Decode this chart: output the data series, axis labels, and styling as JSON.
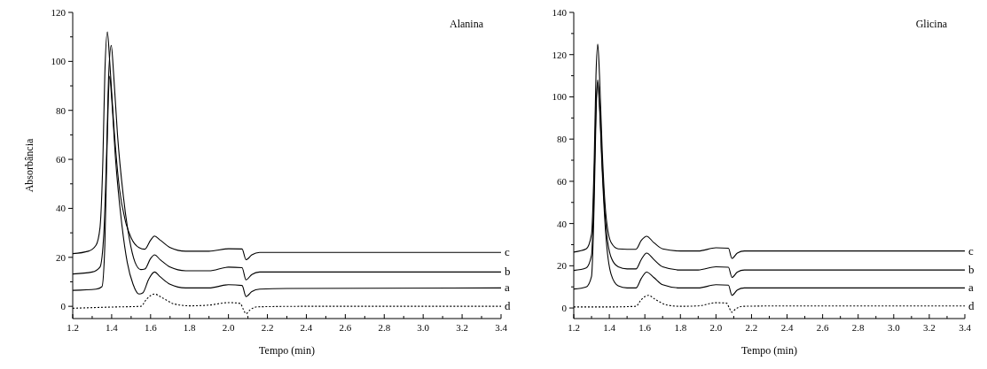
{
  "chart_data": [
    {
      "type": "line",
      "title": "Alanina",
      "xlabel": "Tempo (min)",
      "ylabel": "Absorbância",
      "xlim": [
        1.2,
        3.4
      ],
      "ylim": [
        -5,
        120
      ],
      "xticks": [
        1.2,
        {
          "value": 1.3,
          "label": null
        },
        1.4,
        {
          "value": 1.5,
          "label": null
        },
        1.6,
        {
          "value": 1.7,
          "label": null
        },
        1.8,
        {
          "value": 1.9,
          "label": null
        },
        {
          "value": 2,
          "label": "2.0"
        },
        {
          "value": 2.1,
          "label": null
        },
        2.2,
        {
          "value": 2.3,
          "label": null
        },
        2.4,
        {
          "value": 2.5,
          "label": null
        },
        2.6,
        {
          "value": 2.7,
          "label": null
        },
        2.8,
        {
          "value": 2.9,
          "label": null
        },
        {
          "value": 3,
          "label": "3.0"
        },
        {
          "value": 3.1,
          "label": null
        },
        3.2,
        {
          "value": 3.3,
          "label": null
        },
        3.4
      ],
      "yticks": [
        0,
        {
          "value": 10,
          "label": null
        },
        20,
        {
          "value": 30,
          "label": null
        },
        40,
        {
          "value": 50,
          "label": null
        },
        60,
        {
          "value": 70,
          "label": null
        },
        80,
        {
          "value": 90,
          "label": null
        },
        100,
        {
          "value": 110,
          "label": null
        },
        120
      ],
      "grid": false,
      "series": [
        {
          "name": "c",
          "color": "#000000",
          "line_style": "solid",
          "x": [
            1.2,
            1.28,
            1.32,
            1.34,
            1.355,
            1.365,
            1.378,
            1.39,
            1.41,
            1.44,
            1.47,
            1.5,
            1.54,
            1.57,
            1.6,
            1.62,
            1.65,
            1.7,
            1.78,
            1.9,
            2.0,
            2.07,
            2.09,
            2.12,
            2.16,
            2.3,
            3.4
          ],
          "values": [
            21.5,
            22.5,
            25,
            32,
            60,
            95,
            112,
            100,
            75,
            48,
            35,
            28,
            24,
            23.3,
            27,
            28.7,
            27,
            24,
            22.5,
            22.5,
            23.5,
            23.4,
            19,
            21,
            22,
            22,
            22
          ]
        },
        {
          "name": "b",
          "color": "#000000",
          "line_style": "solid",
          "x": [
            1.2,
            1.3,
            1.34,
            1.36,
            1.375,
            1.385,
            1.398,
            1.41,
            1.43,
            1.46,
            1.49,
            1.52,
            1.55,
            1.57,
            1.6,
            1.62,
            1.65,
            1.7,
            1.78,
            1.9,
            2.0,
            2.07,
            2.09,
            2.12,
            2.16,
            2.3,
            3.4
          ],
          "values": [
            13.2,
            14,
            16,
            30,
            65,
            95,
            106.5,
            95,
            70,
            45,
            28,
            18,
            15,
            15.2,
            19.5,
            21,
            19,
            16,
            14.5,
            14.5,
            16,
            15.8,
            10.8,
            13,
            14,
            14,
            14
          ]
        },
        {
          "name": "a",
          "color": "#000000",
          "line_style": "solid",
          "x": [
            1.2,
            1.32,
            1.35,
            1.365,
            1.375,
            1.383,
            1.39,
            1.4,
            1.42,
            1.45,
            1.48,
            1.51,
            1.54,
            1.56,
            1.59,
            1.62,
            1.65,
            1.7,
            1.78,
            1.9,
            2.0,
            2.07,
            2.09,
            2.12,
            2.16,
            2.3,
            3.4
          ],
          "values": [
            6.5,
            7,
            8,
            25,
            60,
            85,
            94,
            85,
            60,
            35,
            18,
            9,
            5,
            5.5,
            11,
            14,
            12,
            9,
            7.5,
            7.5,
            8.8,
            8.5,
            4,
            6,
            7,
            7.3,
            7.5
          ]
        },
        {
          "name": "d",
          "color": "#000000",
          "line_style": "dotted",
          "x": [
            1.2,
            1.4,
            1.55,
            1.58,
            1.62,
            1.66,
            1.72,
            1.8,
            1.9,
            2.0,
            2.06,
            2.075,
            2.09,
            2.11,
            2.15,
            2.4,
            3.4
          ],
          "values": [
            -0.8,
            -0.3,
            0,
            3,
            5,
            3.5,
            1,
            0.2,
            0.5,
            1.5,
            1.2,
            -1,
            -3,
            -1.5,
            -0.2,
            0,
            0
          ]
        }
      ]
    },
    {
      "type": "line",
      "title": "Glicina",
      "xlabel": "Tempo (min)",
      "xlim": [
        1.2,
        3.4
      ],
      "ylim": [
        -5,
        140
      ],
      "xticks": [
        1.2,
        {
          "value": 1.3,
          "label": null
        },
        1.4,
        {
          "value": 1.5,
          "label": null
        },
        1.6,
        {
          "value": 1.7,
          "label": null
        },
        1.8,
        {
          "value": 1.9,
          "label": null
        },
        {
          "value": 2,
          "label": "2.0"
        },
        {
          "value": 2.1,
          "label": null
        },
        2.2,
        {
          "value": 2.3,
          "label": null
        },
        2.4,
        {
          "value": 2.5,
          "label": null
        },
        2.6,
        {
          "value": 2.7,
          "label": null
        },
        2.8,
        {
          "value": 2.9,
          "label": null
        },
        {
          "value": 3,
          "label": "3.0"
        },
        {
          "value": 3.1,
          "label": null
        },
        3.2,
        {
          "value": 3.3,
          "label": null
        },
        3.4
      ],
      "yticks": [
        0,
        {
          "value": 10,
          "label": null
        },
        20,
        {
          "value": 30,
          "label": null
        },
        40,
        {
          "value": 50,
          "label": null
        },
        60,
        {
          "value": 70,
          "label": null
        },
        80,
        {
          "value": 90,
          "label": null
        },
        100,
        {
          "value": 110,
          "label": null
        },
        120,
        {
          "value": 130,
          "label": null
        },
        140
      ],
      "grid": false,
      "series": [
        {
          "name": "c",
          "color": "#000000",
          "line_style": "solid",
          "x": [
            1.2,
            1.27,
            1.3,
            1.315,
            1.325,
            1.335,
            1.345,
            1.36,
            1.38,
            1.41,
            1.45,
            1.5,
            1.55,
            1.58,
            1.61,
            1.65,
            1.7,
            1.8,
            1.9,
            2.0,
            2.07,
            2.09,
            2.12,
            2.16,
            2.3,
            3.4
          ],
          "values": [
            26.5,
            28,
            35,
            70,
            110,
            125,
            110,
            75,
            45,
            31,
            28,
            27.8,
            27.8,
            32,
            34,
            31,
            28,
            27,
            27,
            28.5,
            28.3,
            23.5,
            26,
            27,
            27,
            27
          ]
        },
        {
          "name": "b",
          "color": "#000000",
          "line_style": "solid",
          "x": [
            1.2,
            1.27,
            1.3,
            1.315,
            1.325,
            1.335,
            1.345,
            1.36,
            1.38,
            1.41,
            1.45,
            1.5,
            1.55,
            1.58,
            1.61,
            1.65,
            1.7,
            1.8,
            1.9,
            2.0,
            2.07,
            2.09,
            2.12,
            2.16,
            2.3,
            3.4
          ],
          "values": [
            17.8,
            19,
            25,
            60,
            95,
            108,
            97,
            68,
            40,
            24,
            19.5,
            18.5,
            18.5,
            23,
            26,
            23,
            19.5,
            18,
            18,
            19.5,
            19.3,
            14.5,
            17,
            18,
            18,
            18
          ]
        },
        {
          "name": "a",
          "color": "#000000",
          "line_style": "solid",
          "x": [
            1.2,
            1.27,
            1.3,
            1.315,
            1.325,
            1.335,
            1.345,
            1.36,
            1.38,
            1.41,
            1.45,
            1.5,
            1.55,
            1.58,
            1.61,
            1.65,
            1.7,
            1.8,
            1.9,
            2.0,
            2.07,
            2.09,
            2.12,
            2.16,
            2.3,
            3.4
          ],
          "values": [
            9,
            10,
            15,
            50,
            90,
            107,
            95,
            65,
            35,
            16,
            10.5,
            9.5,
            9.5,
            14,
            17,
            14.5,
            11,
            9.5,
            9.5,
            11,
            10.8,
            6,
            8.5,
            9.5,
            9.5,
            9.5
          ]
        },
        {
          "name": "d",
          "color": "#000000",
          "line_style": "dotted",
          "x": [
            1.2,
            1.4,
            1.55,
            1.58,
            1.62,
            1.66,
            1.72,
            1.8,
            1.9,
            2.0,
            2.06,
            2.075,
            2.09,
            2.11,
            2.15,
            2.4,
            3.4
          ],
          "values": [
            0.5,
            0.5,
            0.8,
            4,
            6,
            4,
            1.5,
            0.8,
            1,
            2.5,
            2.3,
            0,
            -2,
            -0.5,
            0.8,
            1,
            1
          ]
        }
      ]
    }
  ]
}
